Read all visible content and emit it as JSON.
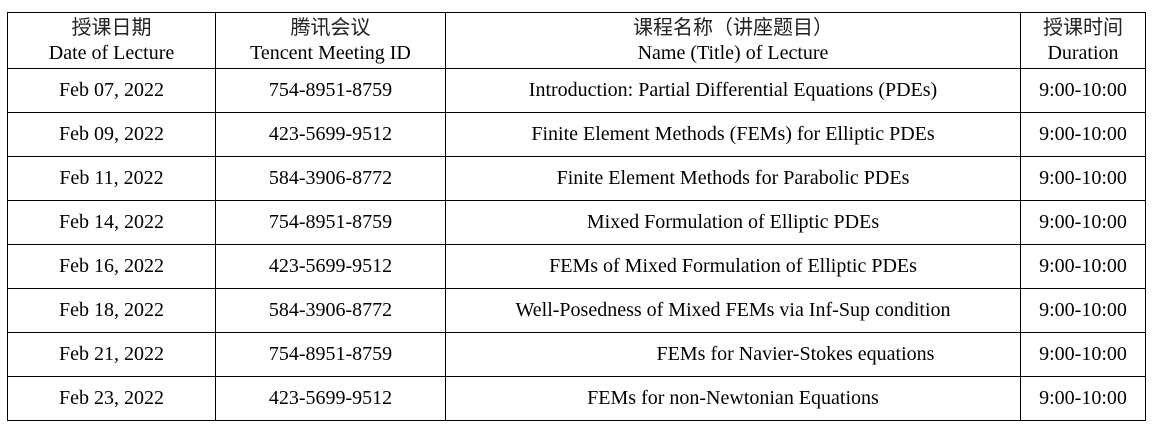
{
  "headers": [
    {
      "zh": "授课日期",
      "en": "Date of Lecture"
    },
    {
      "zh": "腾讯会议",
      "en": "Tencent Meeting ID"
    },
    {
      "zh": "课程名称（讲座题目）",
      "en": "Name (Title) of Lecture"
    },
    {
      "zh": "授课时间",
      "en": "Duration"
    }
  ],
  "rows": [
    {
      "date": "Feb 07, 2022",
      "meeting_id": "754-8951-8759",
      "title": "Introduction: Partial Differential Equations (PDEs)",
      "duration": "9:00-10:00"
    },
    {
      "date": "Feb 09, 2022",
      "meeting_id": "423-5699-9512",
      "title": "Finite Element Methods (FEMs) for Elliptic PDEs",
      "duration": "9:00-10:00"
    },
    {
      "date": "Feb 11, 2022",
      "meeting_id": "584-3906-8772",
      "title": "Finite Element Methods for Parabolic PDEs",
      "duration": "9:00-10:00"
    },
    {
      "date": "Feb 14, 2022",
      "meeting_id": "754-8951-8759",
      "title": "Mixed Formulation of Elliptic PDEs",
      "duration": "9:00-10:00"
    },
    {
      "date": "Feb 16, 2022",
      "meeting_id": "423-5699-9512",
      "title": "FEMs of Mixed Formulation of Elliptic PDEs",
      "duration": "9:00-10:00"
    },
    {
      "date": "Feb 18, 2022",
      "meeting_id": "584-3906-8772",
      "title": "Well-Posedness of Mixed FEMs via Inf-Sup condition",
      "duration": "9:00-10:00"
    },
    {
      "date": "Feb 21, 2022",
      "meeting_id": "754-8951-8759",
      "title": "FEMs for Navier-Stokes equations",
      "duration": "9:00-10:00"
    },
    {
      "date": "Feb 23, 2022",
      "meeting_id": "423-5699-9512",
      "title": "FEMs for non-Newtonian Equations",
      "duration": "9:00-10:00"
    }
  ]
}
